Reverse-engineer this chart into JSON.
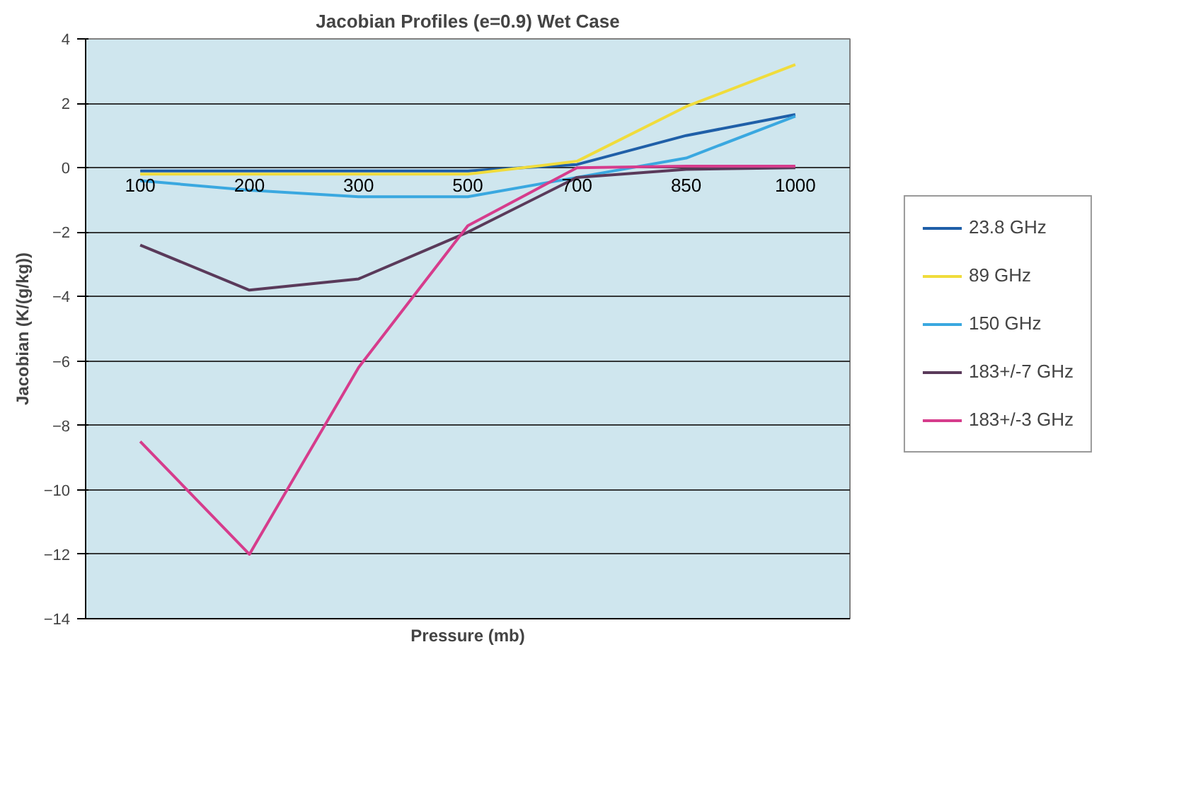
{
  "chart_data": {
    "type": "line",
    "title": "Jacobian Profiles (e=0.9) Wet Case",
    "xlabel": "Pressure (mb)",
    "ylabel": "Jacobian (K/(g/kg))",
    "categories": [
      "100",
      "200",
      "300",
      "500",
      "700",
      "850",
      "1000"
    ],
    "series": [
      {
        "name": "23.8 GHz",
        "color": "#1f5fa8",
        "values": [
          -0.1,
          -0.1,
          -0.1,
          -0.1,
          0.1,
          1.0,
          1.65
        ]
      },
      {
        "name": "89 GHz",
        "color": "#f0dc3c",
        "values": [
          -0.2,
          -0.2,
          -0.2,
          -0.2,
          0.2,
          1.9,
          3.2
        ]
      },
      {
        "name": "150 GHz",
        "color": "#3aa8e0",
        "values": [
          -0.4,
          -0.7,
          -0.9,
          -0.9,
          -0.3,
          0.3,
          1.6
        ]
      },
      {
        "name": "183+/-7 GHz",
        "color": "#5a3a5a",
        "values": [
          -2.4,
          -3.8,
          -3.45,
          -2.0,
          -0.3,
          -0.05,
          0.0
        ]
      },
      {
        "name": "183+/-3 GHz",
        "color": "#d63c8c",
        "values": [
          -8.5,
          -12.0,
          -6.2,
          -1.8,
          0.0,
          0.05,
          0.05
        ]
      }
    ],
    "ylim": [
      -14,
      4
    ],
    "yticks": [
      -14,
      -12,
      -10,
      -8,
      -6,
      -4,
      -2,
      0,
      2,
      4
    ],
    "grid": "y",
    "legend": "right",
    "marker": "none",
    "line_style": "solid"
  }
}
